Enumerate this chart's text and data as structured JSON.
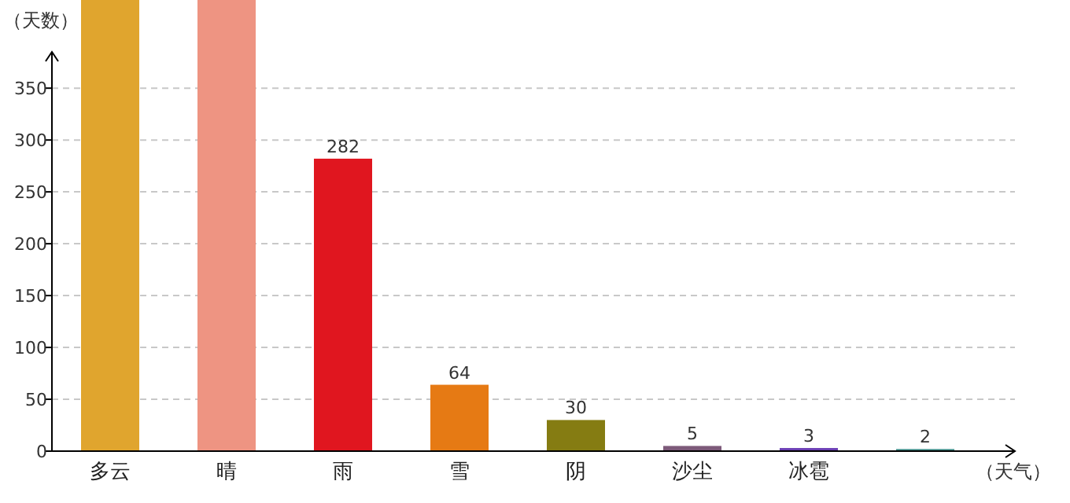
{
  "chart_data": {
    "type": "bar",
    "xlabel": "（天气）",
    "ylabel": "（天数）",
    "categories": [
      "多云",
      "晴",
      "雨",
      "雪",
      "阴",
      "沙尘",
      "冰雹",
      null
    ],
    "values": [
      435,
      435,
      282,
      64,
      30,
      5,
      3,
      2
    ],
    "value_labels": [
      null,
      null,
      "282",
      "64",
      "30",
      "5",
      "3",
      "2"
    ],
    "colors": [
      "#e0a52e",
      "#ee9482",
      "#e0161f",
      "#e67a14",
      "#857c12",
      "#7d5a7a",
      "#6c3fb5",
      "#3c8c88"
    ],
    "ylim": [
      0,
      435
    ],
    "yticks": [
      0,
      50,
      100,
      150,
      200,
      250,
      300,
      350
    ],
    "grid": "y"
  }
}
